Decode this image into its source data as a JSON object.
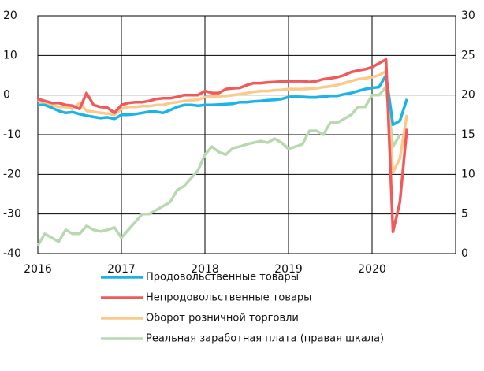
{
  "chart_data": {
    "type": "line",
    "x": [
      2016,
      2016.083,
      2016.167,
      2016.25,
      2016.333,
      2016.417,
      2016.5,
      2016.583,
      2016.667,
      2016.75,
      2016.833,
      2016.917,
      2017,
      2017.083,
      2017.167,
      2017.25,
      2017.333,
      2017.417,
      2017.5,
      2017.583,
      2017.667,
      2017.75,
      2017.833,
      2017.917,
      2018,
      2018.083,
      2018.167,
      2018.25,
      2018.333,
      2018.417,
      2018.5,
      2018.583,
      2018.667,
      2018.75,
      2018.833,
      2018.917,
      2019,
      2019.083,
      2019.167,
      2019.25,
      2019.333,
      2019.417,
      2019.5,
      2019.583,
      2019.667,
      2019.75,
      2019.833,
      2019.917,
      2020,
      2020.083,
      2020.167,
      2020.25,
      2020.333,
      2020.417
    ],
    "series": [
      {
        "name": "Продовольственные товары",
        "color": "#1ab4e6",
        "values": [
          -2.5,
          -2.5,
          -3.2,
          -4,
          -4.5,
          -4.3,
          -4.8,
          -5.2,
          -5.5,
          -5.8,
          -5.6,
          -6,
          -5,
          -5,
          -4.8,
          -4.5,
          -4.2,
          -4.2,
          -4.5,
          -3.8,
          -3,
          -2.5,
          -2.5,
          -2.7,
          -2.5,
          -2.5,
          -2.4,
          -2.3,
          -2.2,
          -1.8,
          -1.8,
          -1.6,
          -1.5,
          -1.3,
          -1.2,
          -1,
          -0.5,
          -0.4,
          -0.5,
          -0.6,
          -0.6,
          -0.4,
          -0.2,
          -0.2,
          0.2,
          0.5,
          1,
          1.5,
          1.8,
          2,
          5,
          -7.5,
          -6.5,
          -1
        ]
      },
      {
        "name": "Непродовольственные товары",
        "color": "#f05a5a",
        "values": [
          -1,
          -1.5,
          -2,
          -2,
          -2.5,
          -2.7,
          -3.5,
          0.5,
          -2.5,
          -3,
          -3.2,
          -4.5,
          -2.5,
          -2,
          -1.8,
          -1.8,
          -1.5,
          -1,
          -0.8,
          -0.8,
          -0.5,
          0,
          0,
          0,
          1,
          0.5,
          0.5,
          1.5,
          1.7,
          1.8,
          2.5,
          3,
          3,
          3.2,
          3.3,
          3.4,
          3.5,
          3.5,
          3.5,
          3.3,
          3.5,
          4,
          4.2,
          4.5,
          5,
          5.8,
          6.2,
          6.5,
          7,
          8,
          9,
          -34.5,
          -27,
          -8.5
        ]
      },
      {
        "name": "Оборот розничной торговли",
        "color": "#fbc98a",
        "values": [
          -1.5,
          -2,
          -2.5,
          -3,
          -3,
          -3.5,
          -2,
          -4,
          -4.2,
          -4.5,
          -4.7,
          -5,
          -3.5,
          -3,
          -3,
          -2.8,
          -2.8,
          -2.5,
          -2.5,
          -2,
          -1.8,
          -1.5,
          -1.3,
          -1.2,
          -0.5,
          -0.5,
          -0.3,
          -0.2,
          0,
          0.2,
          0.5,
          0.8,
          1,
          1,
          1.2,
          1.3,
          1.5,
          1.5,
          1.5,
          1.6,
          1.7,
          2,
          2.2,
          2.5,
          3,
          3.5,
          4,
          4.2,
          4.5,
          5,
          6,
          -19.5,
          -16,
          -5
        ]
      },
      {
        "name": "Реальная заработная плата (правая шкала)",
        "color": "#b8d9b0",
        "axis": "y2",
        "values": [
          1,
          2.5,
          2,
          1.5,
          3,
          2.5,
          2.5,
          3.5,
          3,
          2.8,
          3,
          3.3,
          2,
          3,
          4,
          5,
          5,
          5.5,
          6,
          6.5,
          8,
          8.5,
          9.5,
          10.5,
          12.5,
          13.5,
          12.8,
          12.5,
          13.3,
          13.5,
          13.8,
          14,
          14.2,
          14,
          14.5,
          14,
          13.2,
          13.5,
          13.8,
          15.5,
          15.5,
          15,
          16.5,
          16.5,
          17,
          17.5,
          18.5,
          18.5,
          20,
          20,
          21,
          13.5,
          15,
          null
        ]
      }
    ],
    "xlim": [
      2016,
      2021
    ],
    "xticks": [
      2016,
      2017,
      2018,
      2019,
      2020
    ],
    "ylim": [
      -40,
      20
    ],
    "yticks": [
      -40,
      -30,
      -20,
      -10,
      0,
      10,
      20
    ],
    "y2lim": [
      0,
      30
    ],
    "y2ticks": [
      0,
      5,
      10,
      15,
      20,
      25,
      30
    ],
    "grid": true
  }
}
